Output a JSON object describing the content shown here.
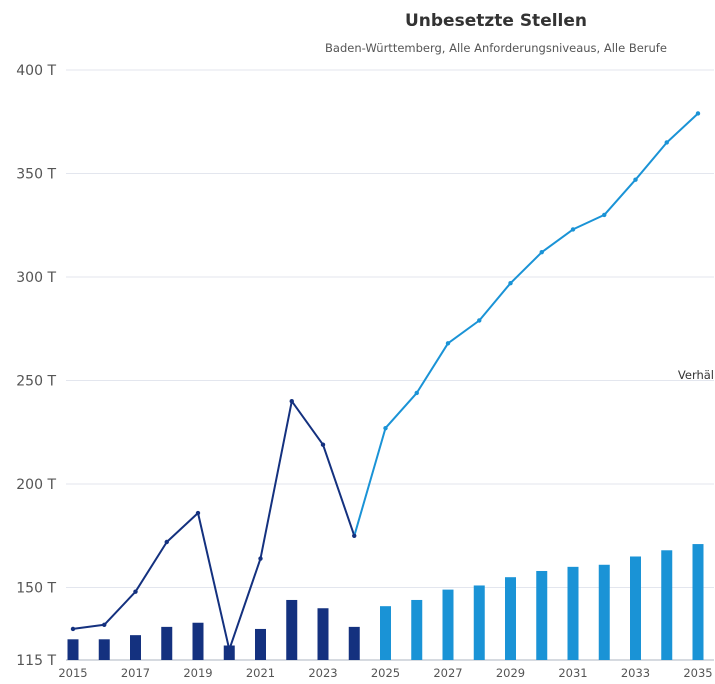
{
  "chart_data": {
    "type": "bar+line",
    "title": "Unbesetzte Stellen",
    "subtitle": "Baden-Württemberg, Alle Anforderungsniveaus, Alle Berufe",
    "annotation": "Verhäl",
    "xlabel": "",
    "ylabel": "",
    "y_ticks": [
      "115 T",
      "150 T",
      "200 T",
      "250 T",
      "300 T",
      "350 T",
      "400 T"
    ],
    "y_tick_values": [
      115,
      150,
      200,
      250,
      300,
      350,
      400
    ],
    "ylim": [
      115,
      400
    ],
    "x_ticks": [
      "2015",
      "2017",
      "2019",
      "2021",
      "2023",
      "2025",
      "2027",
      "2029",
      "2031",
      "2033",
      "2035"
    ],
    "years": [
      2015,
      2016,
      2017,
      2018,
      2019,
      2020,
      2021,
      2022,
      2023,
      2024,
      2025,
      2026,
      2027,
      2028,
      2029,
      2030,
      2031,
      2032,
      2033,
      2034,
      2035
    ],
    "grid": true,
    "colors": {
      "historical": "#14317f",
      "forecast": "#1a93d6",
      "grid": "#e3e6ee"
    },
    "series": [
      {
        "type": "line",
        "values": [
          130,
          132,
          148,
          172,
          186,
          120,
          164,
          240,
          219,
          175,
          227,
          244,
          268,
          279,
          297,
          312,
          323,
          330,
          347,
          365,
          379
        ]
      },
      {
        "type": "bar",
        "values": [
          125,
          125,
          127,
          131,
          133,
          122,
          130,
          144,
          140,
          131,
          141,
          144,
          149,
          151,
          155,
          158,
          160,
          161,
          165,
          168,
          171
        ]
      }
    ],
    "forecast_start_year": 2025
  }
}
